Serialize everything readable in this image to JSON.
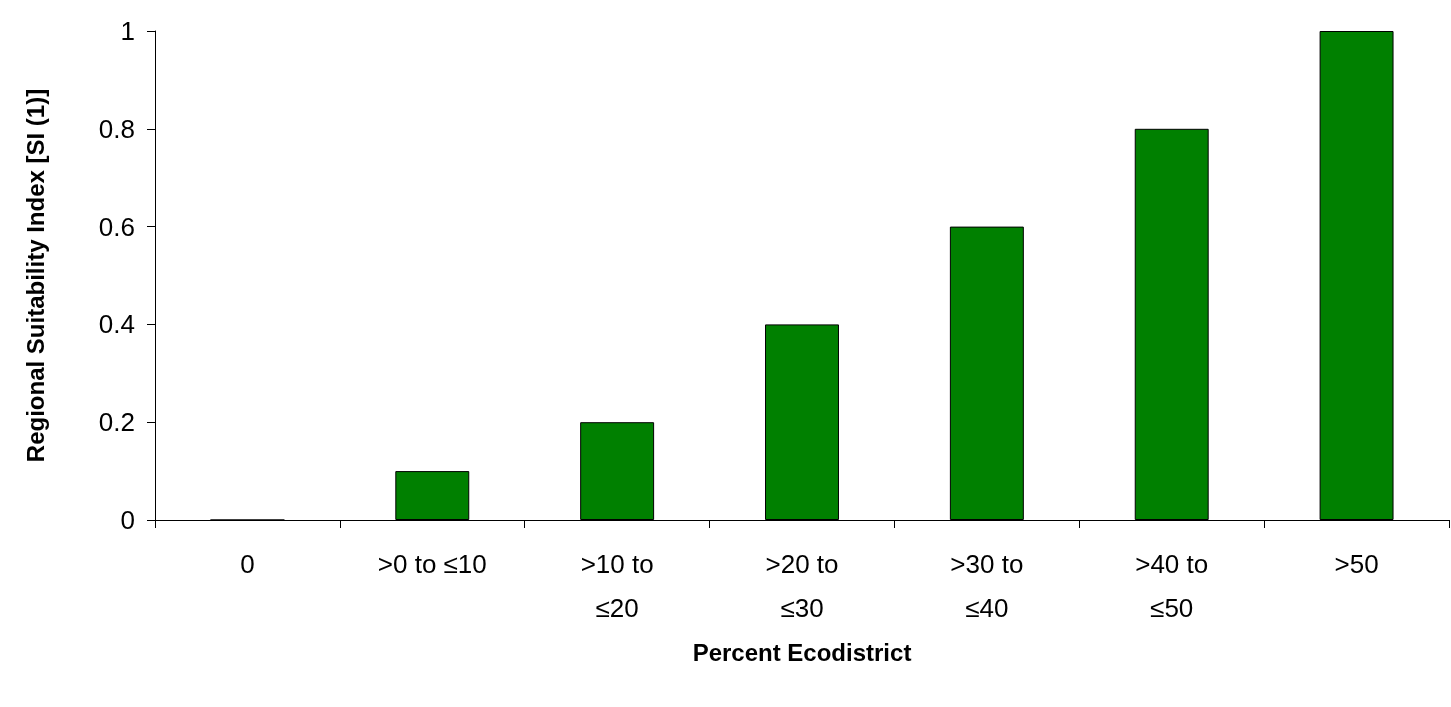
{
  "chart_data": {
    "type": "bar",
    "xlabel": "Percent Ecodistrict",
    "ylabel": "Regional Suitability Index [SI (1)]",
    "categories": [
      "0",
      ">0 to ≤10",
      ">10 to ≤20",
      ">20 to ≤30",
      ">30 to ≤40",
      ">40 to ≤50",
      ">50"
    ],
    "values": [
      0,
      0.1,
      0.2,
      0.4,
      0.6,
      0.8,
      1
    ],
    "color": "#008000",
    "ylim": [
      0,
      1
    ],
    "yticks": [
      0,
      0.2,
      0.4,
      0.6,
      0.8,
      1
    ],
    "grid": false
  }
}
